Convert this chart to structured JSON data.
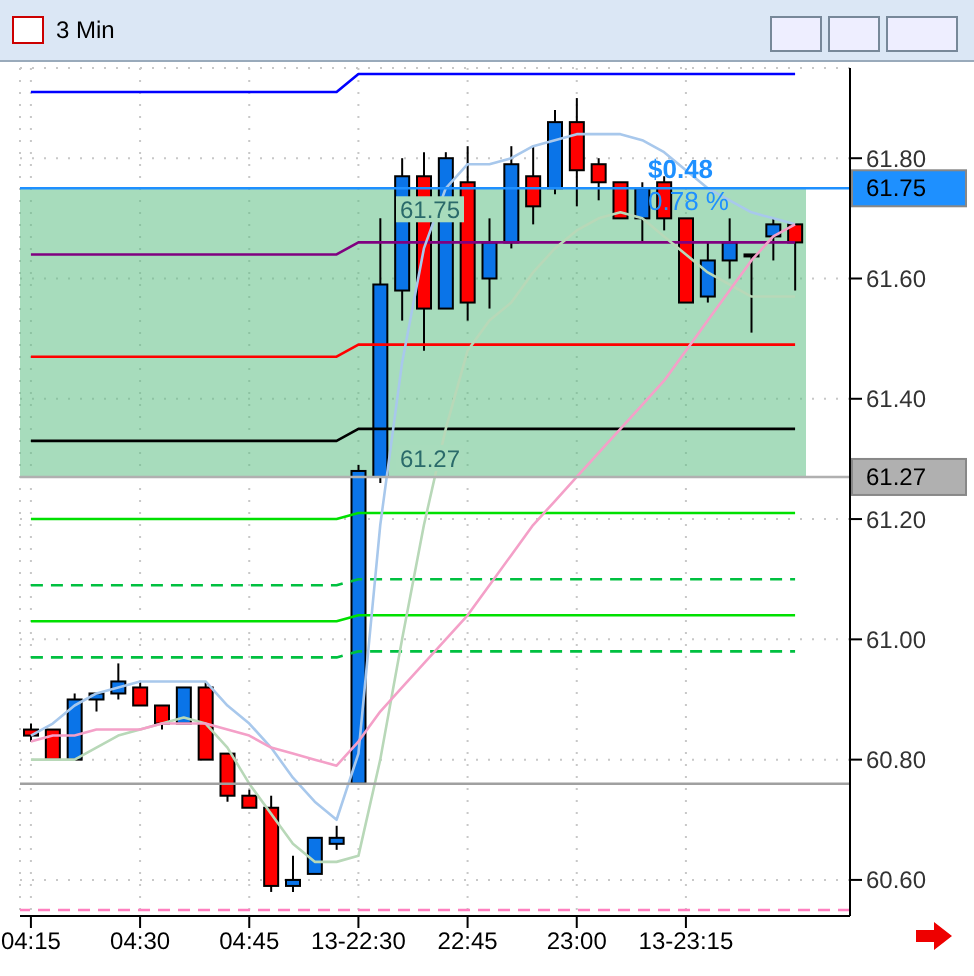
{
  "chart_data": {
    "type": "candlestick",
    "title": "3 Min",
    "categories": [
      "04:15",
      null,
      null,
      null,
      null,
      "04:30",
      null,
      null,
      null,
      null,
      "04:45",
      null,
      null,
      null,
      null,
      "13-22:30",
      null,
      null,
      null,
      null,
      "22:45",
      null,
      null,
      null,
      null,
      "23:00",
      null,
      null,
      null,
      null,
      "13-23:15",
      null,
      null,
      null,
      null,
      null
    ],
    "ohlc": [
      [
        60.85,
        60.86,
        60.83,
        60.84
      ],
      [
        60.85,
        60.85,
        60.8,
        60.8
      ],
      [
        60.8,
        60.91,
        60.8,
        60.9
      ],
      [
        60.9,
        60.91,
        60.88,
        60.91
      ],
      [
        60.91,
        60.96,
        60.9,
        60.93
      ],
      [
        60.92,
        60.93,
        60.89,
        60.89
      ],
      [
        60.89,
        60.89,
        60.85,
        60.86
      ],
      [
        60.86,
        60.92,
        60.86,
        60.92
      ],
      [
        60.92,
        60.93,
        60.8,
        60.8
      ],
      [
        60.81,
        60.81,
        60.73,
        60.74
      ],
      [
        60.74,
        60.75,
        60.72,
        60.72
      ],
      [
        60.72,
        60.74,
        60.58,
        60.59
      ],
      [
        60.59,
        60.64,
        60.58,
        60.6
      ],
      [
        60.61,
        60.67,
        60.61,
        60.67
      ],
      [
        60.66,
        60.69,
        60.65,
        60.67
      ],
      [
        60.76,
        61.29,
        60.76,
        61.28
      ],
      [
        61.27,
        61.7,
        61.26,
        61.59
      ],
      [
        61.58,
        61.8,
        61.53,
        61.77
      ],
      [
        61.77,
        61.81,
        61.48,
        61.55
      ],
      [
        61.55,
        61.81,
        61.55,
        61.8
      ],
      [
        61.76,
        61.82,
        61.53,
        61.56
      ],
      [
        61.6,
        61.7,
        61.55,
        61.66
      ],
      [
        61.66,
        61.82,
        61.65,
        61.79
      ],
      [
        61.77,
        61.82,
        61.69,
        61.72
      ],
      [
        61.75,
        61.88,
        61.74,
        61.86
      ],
      [
        61.86,
        61.9,
        61.72,
        61.78
      ],
      [
        61.79,
        61.8,
        61.73,
        61.76
      ],
      [
        61.76,
        61.76,
        61.7,
        61.7
      ],
      [
        61.7,
        61.76,
        61.66,
        61.75
      ],
      [
        61.76,
        61.77,
        61.68,
        61.7
      ],
      [
        61.7,
        61.7,
        61.56,
        61.56
      ],
      [
        61.57,
        61.66,
        61.56,
        61.63
      ],
      [
        61.63,
        61.7,
        61.6,
        61.66
      ],
      [
        61.64,
        61.64,
        61.51,
        61.64
      ],
      [
        61.67,
        61.7,
        61.63,
        61.69
      ],
      [
        61.69,
        61.69,
        61.58,
        61.66
      ]
    ],
    "colors": [
      "#ff0000",
      "#ff0000",
      "#0a74e8",
      "#0a74e8",
      "#0a74e8",
      "#ff0000",
      "#ff0000",
      "#0a74e8",
      "#ff0000",
      "#ff0000",
      "#ff0000",
      "#ff0000",
      "#0a74e8",
      "#0a74e8",
      "#0a74e8",
      "#0a74e8",
      "#0a74e8",
      "#0a74e8",
      "#ff0000",
      "#0a74e8",
      "#ff0000",
      "#0a74e8",
      "#0a74e8",
      "#ff0000",
      "#0a74e8",
      "#ff0000",
      "#ff0000",
      "#ff0000",
      "#0a74e8",
      "#ff0000",
      "#ff0000",
      "#0a74e8",
      "#0a74e8",
      "#000000",
      "#0a74e8",
      "#ff0000"
    ],
    "series": [
      {
        "type": "line",
        "color": "#0000ff",
        "values": [
          61.91,
          61.91,
          61.91,
          61.91,
          61.91,
          61.91,
          61.91,
          61.91,
          61.91,
          61.91,
          61.91,
          61.91,
          61.91,
          61.91,
          61.91,
          61.94,
          61.94,
          61.94,
          61.94,
          61.94,
          61.94,
          61.94,
          61.94,
          61.94,
          61.94,
          61.94,
          61.94,
          61.94,
          61.94,
          61.94,
          61.94,
          61.94,
          61.94,
          61.94,
          61.94,
          61.94
        ]
      },
      {
        "type": "line",
        "color": "#800080",
        "values": [
          61.64,
          61.64,
          61.64,
          61.64,
          61.64,
          61.64,
          61.64,
          61.64,
          61.64,
          61.64,
          61.64,
          61.64,
          61.64,
          61.64,
          61.64,
          61.66,
          61.66,
          61.66,
          61.66,
          61.66,
          61.66,
          61.66,
          61.66,
          61.66,
          61.66,
          61.66,
          61.66,
          61.66,
          61.66,
          61.66,
          61.66,
          61.66,
          61.66,
          61.66,
          61.66,
          61.66
        ]
      },
      {
        "type": "line",
        "color": "#ff0000",
        "values": [
          61.47,
          61.47,
          61.47,
          61.47,
          61.47,
          61.47,
          61.47,
          61.47,
          61.47,
          61.47,
          61.47,
          61.47,
          61.47,
          61.47,
          61.47,
          61.49,
          61.49,
          61.49,
          61.49,
          61.49,
          61.49,
          61.49,
          61.49,
          61.49,
          61.49,
          61.49,
          61.49,
          61.49,
          61.49,
          61.49,
          61.49,
          61.49,
          61.49,
          61.49,
          61.49,
          61.49
        ]
      },
      {
        "type": "line",
        "color": "#000000",
        "values": [
          61.33,
          61.33,
          61.33,
          61.33,
          61.33,
          61.33,
          61.33,
          61.33,
          61.33,
          61.33,
          61.33,
          61.33,
          61.33,
          61.33,
          61.33,
          61.35,
          61.35,
          61.35,
          61.35,
          61.35,
          61.35,
          61.35,
          61.35,
          61.35,
          61.35,
          61.35,
          61.35,
          61.35,
          61.35,
          61.35,
          61.35,
          61.35,
          61.35,
          61.35,
          61.35,
          61.35
        ]
      },
      {
        "type": "line",
        "color": "#00e000",
        "values": [
          61.2,
          61.2,
          61.2,
          61.2,
          61.2,
          61.2,
          61.2,
          61.2,
          61.2,
          61.2,
          61.2,
          61.2,
          61.2,
          61.2,
          61.2,
          61.21,
          61.21,
          61.21,
          61.21,
          61.21,
          61.21,
          61.21,
          61.21,
          61.21,
          61.21,
          61.21,
          61.21,
          61.21,
          61.21,
          61.21,
          61.21,
          61.21,
          61.21,
          61.21,
          61.21,
          61.21
        ]
      },
      {
        "type": "line",
        "color": "#00c040",
        "line_style": "dashed",
        "values": [
          61.09,
          61.09,
          61.09,
          61.09,
          61.09,
          61.09,
          61.09,
          61.09,
          61.09,
          61.09,
          61.09,
          61.09,
          61.09,
          61.09,
          61.09,
          61.1,
          61.1,
          61.1,
          61.1,
          61.1,
          61.1,
          61.1,
          61.1,
          61.1,
          61.1,
          61.1,
          61.1,
          61.1,
          61.1,
          61.1,
          61.1,
          61.1,
          61.1,
          61.1,
          61.1,
          61.1
        ]
      },
      {
        "type": "line",
        "color": "#00e000",
        "values": [
          61.03,
          61.03,
          61.03,
          61.03,
          61.03,
          61.03,
          61.03,
          61.03,
          61.03,
          61.03,
          61.03,
          61.03,
          61.03,
          61.03,
          61.03,
          61.04,
          61.04,
          61.04,
          61.04,
          61.04,
          61.04,
          61.04,
          61.04,
          61.04,
          61.04,
          61.04,
          61.04,
          61.04,
          61.04,
          61.04,
          61.04,
          61.04,
          61.04,
          61.04,
          61.04,
          61.04
        ]
      },
      {
        "type": "line",
        "color": "#00c040",
        "line_style": "dashed",
        "values": [
          60.97,
          60.97,
          60.97,
          60.97,
          60.97,
          60.97,
          60.97,
          60.97,
          60.97,
          60.97,
          60.97,
          60.97,
          60.97,
          60.97,
          60.97,
          60.98,
          60.98,
          60.98,
          60.98,
          60.98,
          60.98,
          60.98,
          60.98,
          60.98,
          60.98,
          60.98,
          60.98,
          60.98,
          60.98,
          60.98,
          60.98,
          60.98,
          60.98,
          60.98,
          60.98,
          60.98
        ]
      },
      {
        "type": "line",
        "color": "#a8c8ec",
        "values": [
          60.84,
          60.86,
          60.89,
          60.91,
          60.92,
          60.93,
          60.93,
          60.93,
          60.93,
          60.89,
          60.86,
          60.82,
          60.77,
          60.73,
          60.7,
          60.81,
          61.19,
          61.46,
          61.65,
          61.75,
          61.79,
          61.79,
          61.8,
          61.82,
          61.83,
          61.84,
          61.84,
          61.84,
          61.83,
          61.81,
          61.78,
          61.75,
          61.73,
          61.71,
          61.7,
          61.69
        ]
      },
      {
        "type": "line",
        "color": "#b8d8b8",
        "values": [
          60.8,
          60.8,
          60.8,
          60.82,
          60.84,
          60.85,
          60.86,
          60.87,
          60.86,
          60.82,
          60.76,
          60.71,
          60.66,
          60.63,
          60.63,
          60.64,
          60.8,
          61.0,
          61.19,
          61.35,
          61.48,
          61.53,
          61.56,
          61.61,
          61.65,
          61.68,
          61.7,
          61.71,
          61.7,
          61.67,
          61.64,
          61.61,
          61.59,
          61.57,
          61.57,
          61.57
        ]
      },
      {
        "type": "line",
        "color": "#f4a0c8",
        "values": [
          60.83,
          60.84,
          60.84,
          60.85,
          60.85,
          60.85,
          60.86,
          60.86,
          60.86,
          60.85,
          60.84,
          60.82,
          60.81,
          60.8,
          60.79,
          60.83,
          60.88,
          60.92,
          60.96,
          61.0,
          61.04,
          61.09,
          61.14,
          61.19,
          61.23,
          61.27,
          61.31,
          61.35,
          61.39,
          61.43,
          61.48,
          61.53,
          61.58,
          61.63,
          61.67,
          61.69
        ]
      }
    ],
    "ref_lines": [
      {
        "axis": "y",
        "value": 61.75,
        "label": "61.75",
        "color": "#1e90ff"
      },
      {
        "axis": "y",
        "value": 61.27,
        "label": "61.27",
        "color": "#b0b0b0"
      },
      {
        "axis": "y",
        "value": 60.76,
        "label": null,
        "color": "#a0a0a0"
      },
      {
        "axis": "y",
        "value": 60.55,
        "label": null,
        "color": "#ff80c0",
        "line_style": "dashed"
      }
    ],
    "bands": [
      {
        "axis": "y",
        "from": 61.27,
        "to": 61.75,
        "label": null,
        "color": "#5fbf85"
      }
    ],
    "annotations": [
      "$0.48",
      "0.78 %"
    ],
    "ylim": [
      60.54,
      61.95
    ],
    "yticks": [
      {
        "value": 60.6,
        "label": "60.60"
      },
      {
        "value": 60.8,
        "label": "60.80"
      },
      {
        "value": 61.0,
        "label": "61.00"
      },
      {
        "value": 61.2,
        "label": "61.20"
      },
      {
        "value": 61.4,
        "label": "61.40"
      },
      {
        "value": 61.6,
        "label": "61.60"
      },
      {
        "value": 61.8,
        "label": "61.80"
      }
    ],
    "grid": true
  }
}
